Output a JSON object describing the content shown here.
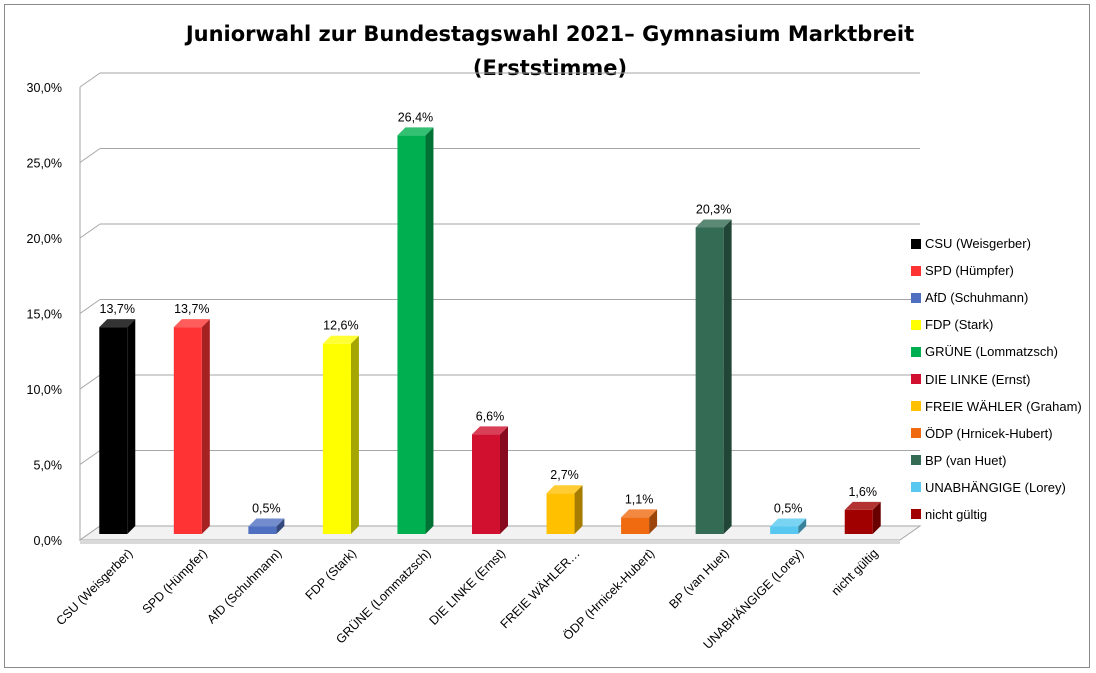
{
  "chart_data": {
    "type": "bar",
    "title_line1": "Juniorwahl zur Bundestagswahl 2021– Gymnasium Marktbreit",
    "title_line2": "(Erststimme)",
    "xlabel": "",
    "ylabel": "",
    "ylim": [
      0,
      30
    ],
    "yticks": [
      "0,0%",
      "5,0%",
      "10,0%",
      "15,0%",
      "20,0%",
      "25,0%",
      "30,0%"
    ],
    "grid": true,
    "legend_position": "right",
    "categories": [
      "CSU (Weisgerber)",
      "SPD (Hümpfer)",
      "AfD (Schuhmann)",
      "FDP (Stark)",
      "GRÜNE (Lommatzsch)",
      "DIE LINKE (Ernst)",
      "FREIE WÄHLER…",
      "ÖDP (Hrnicek-Hubert)",
      "BP (van Huet)",
      "UNABHÄNGIGE (Lorey)",
      "nicht gültig"
    ],
    "legend_labels": [
      "CSU (Weisgerber)",
      "SPD (Hümpfer)",
      "AfD (Schuhmann)",
      "FDP (Stark)",
      "GRÜNE (Lommatzsch)",
      "DIE LINKE (Ernst)",
      "FREIE WÄHLER (Graham)",
      "ÖDP (Hrnicek-Hubert)",
      "BP (van Huet)",
      "UNABHÄNGIGE (Lorey)",
      "nicht gültig"
    ],
    "values": [
      13.7,
      13.7,
      0.5,
      12.6,
      26.4,
      6.6,
      2.7,
      1.1,
      20.3,
      0.5,
      1.6
    ],
    "value_labels": [
      "13,7%",
      "13,7%",
      "0,5%",
      "12,6%",
      "26,4%",
      "6,6%",
      "2,7%",
      "1,1%",
      "20,3%",
      "0,5%",
      "1,6%"
    ],
    "colors": [
      "#000000",
      "#ff3333",
      "#4f6fc0",
      "#ffff00",
      "#00b050",
      "#d0102e",
      "#ffc000",
      "#f06a10",
      "#336b54",
      "#58c8f0",
      "#a00000"
    ]
  }
}
